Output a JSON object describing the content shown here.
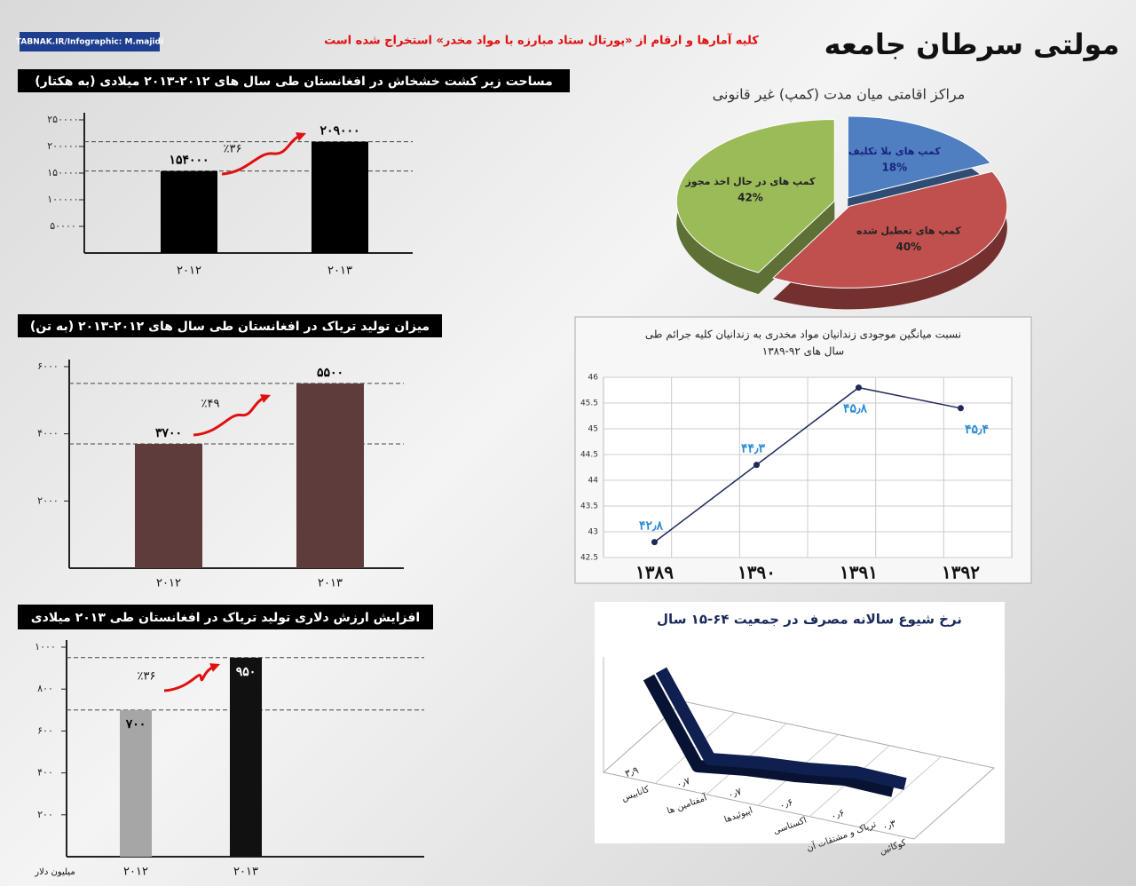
{
  "header": {
    "title": "مولتی سرطان جامعه",
    "source": "کلیه آمارها و ارقام از «پورتال ستاد مبارزه با مواد مخدر» استخراج شده است",
    "logo": "TABNAK.IR/Infographic: M.majidi"
  },
  "chart_data": [
    {
      "type": "bar",
      "title": "مساحت زیر کشت خشخاش در افغانستان طی سال های ۲۰۱۲-۲۰۱۳ میلادی (به هکتار)",
      "categories": [
        "۲۰۱۲",
        "۲۰۱۳"
      ],
      "values": [
        154000,
        209000
      ],
      "value_labels": [
        "۱۵۴۰۰۰",
        "۲۰۹۰۰۰"
      ],
      "color": "#000000",
      "ylim": [
        0,
        250000
      ],
      "yticks": [
        {
          "value": 50000,
          "label": "۵۰۰۰۰"
        },
        {
          "value": 100000,
          "label": "۱۰۰۰۰۰"
        },
        {
          "value": 150000,
          "label": "۱۵۰۰۰۰"
        },
        {
          "value": 200000,
          "label": "۲۰۰۰۰۰"
        },
        {
          "value": 250000,
          "label": "۲۵۰۰۰۰"
        }
      ],
      "annotation": "٪۳۶"
    },
    {
      "type": "bar",
      "title": "میزان تولید تریاک در افغانستان طی سال های ۲۰۱۲-۲۰۱۳ (به تن)",
      "categories": [
        "۲۰۱۲",
        "۲۰۱۳"
      ],
      "values": [
        3700,
        5500
      ],
      "value_labels": [
        "۳۷۰۰",
        "۵۵۰۰"
      ],
      "color": "#5e3c3c",
      "ylim": [
        0,
        6000
      ],
      "yticks": [
        {
          "value": 2000,
          "label": "۲۰۰۰"
        },
        {
          "value": 4000,
          "label": "۴۰۰۰"
        },
        {
          "value": 6000,
          "label": "۶۰۰۰"
        }
      ],
      "annotation": "٪۴۹"
    },
    {
      "type": "bar",
      "title": "افزایش ارزش دلاری تولید تریاک در افغانستان طی ۲۰۱۳ میلادی",
      "categories": [
        "۲۰۱۲",
        "۲۰۱۳"
      ],
      "values": [
        700,
        950
      ],
      "value_labels": [
        "۷۰۰",
        "۹۵۰"
      ],
      "colors": [
        "#a6a6a6",
        "#111111"
      ],
      "ylabel": "میلیون دلار",
      "ylim": [
        0,
        1000
      ],
      "yticks": [
        {
          "value": 200,
          "label": "۲۰۰"
        },
        {
          "value": 400,
          "label": "۴۰۰"
        },
        {
          "value": 600,
          "label": "۶۰۰"
        },
        {
          "value": 800,
          "label": "۸۰۰"
        },
        {
          "value": 1000,
          "label": "۱۰۰۰"
        }
      ],
      "annotation": "٪۳۶"
    },
    {
      "type": "pie",
      "title": "مراکز اقامتی میان مدت (کمپ) غیر قانونی",
      "categories": [
        "کمپ های بلا تکلیف",
        "کمپ های تعطیل شده",
        "کمپ های در حال اخذ مجوز"
      ],
      "values": [
        18,
        40,
        42
      ],
      "value_labels": [
        "18%",
        "40%",
        "42%"
      ],
      "colors": [
        "#4f7fc0",
        "#c0504d",
        "#9bbb59"
      ]
    },
    {
      "type": "line",
      "title": [
        "نسبت میانگین موجودی زندانیان مواد مخدری به زندانیان کلیه جرائم طی",
        "سال های ۹۲-۱۳۸۹"
      ],
      "categories": [
        "۱۳۸۹",
        "۱۳۹۰",
        "۱۳۹۱",
        "۱۳۹۲"
      ],
      "values": [
        42.8,
        44.3,
        45.8,
        45.4
      ],
      "value_labels": [
        "۴۲٫۸",
        "۴۴٫۳",
        "۴۵٫۸",
        "۴۵٫۴"
      ],
      "color": "#1f2a5a",
      "ylim": [
        42.5,
        46
      ],
      "yticks": [
        42.5,
        43,
        43.5,
        44,
        44.5,
        45,
        45.5,
        46
      ],
      "grid": true
    },
    {
      "type": "ribbon",
      "title": "نرخ شیوع سالانه مصرف در جمعیت ۶۴-۱۵ سال",
      "categories": [
        "کانابیس",
        "آمفتامین ها",
        "اپیوئیدها",
        "اکستاسی",
        "تریاک و مشتقات آن",
        "کوکائین"
      ],
      "values": [
        3.9,
        0.7,
        0.7,
        0.6,
        0.6,
        0.3
      ],
      "value_labels": [
        "۳٫۹",
        "۰٫۷",
        "۰٫۷",
        "۰٫۶",
        "۰٫۶",
        "۰٫۳"
      ],
      "color": "#0f1f4f"
    }
  ]
}
